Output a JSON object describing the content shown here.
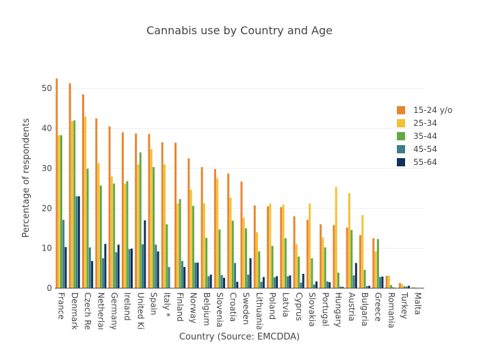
{
  "chart_data": {
    "type": "bar",
    "title": "Cannabis use by Country and Age",
    "xlabel": "Country (Source: EMCDDA)",
    "ylabel": "Percentage of respondents",
    "ylim": [
      0,
      55
    ],
    "yticks": [
      0,
      10,
      20,
      30,
      40,
      50
    ],
    "grid": true,
    "legend_position": "right",
    "categories": [
      "France",
      "Denmark",
      "Czech Republic",
      "Netherlands",
      "Germany",
      "Ireland",
      "United Kingdom",
      "Spain",
      "Italy *",
      "Finland",
      "Norway",
      "Belgium",
      "Slovenia",
      "Croatia",
      "Sweden",
      "Lithuania",
      "Poland",
      "Latvia",
      "Cyprus",
      "Slovakia",
      "Portugal",
      "Hungary",
      "Austria",
      "Bulgaria",
      "Greece",
      "Romania",
      "Turkey",
      "Malta"
    ],
    "series": [
      {
        "name": "15-24 y/o",
        "color": "#e6862f",
        "values": [
          52.5,
          51.3,
          48.5,
          42.5,
          40.5,
          39.0,
          38.7,
          38.6,
          36.5,
          36.4,
          32.5,
          30.3,
          29.8,
          28.7,
          26.7,
          20.7,
          20.5,
          20.3,
          18.0,
          17.1,
          16.0,
          15.8,
          15.2,
          13.3,
          12.5,
          3.1,
          1.3,
          0.2
        ]
      },
      {
        "name": "25-34",
        "color": "#f2c234",
        "values": [
          38.3,
          41.8,
          43.0,
          31.3,
          28.0,
          26.2,
          31.0,
          34.8,
          31.0,
          21.2,
          24.7,
          21.3,
          27.5,
          22.7,
          17.7,
          14.0,
          21.2,
          20.9,
          11.0,
          21.2,
          12.7,
          25.3,
          23.8,
          18.3,
          9.2,
          3.1,
          1.0,
          0.2
        ]
      },
      {
        "name": "35-44",
        "color": "#62a844",
        "values": [
          38.3,
          42.0,
          29.9,
          25.7,
          26.2,
          26.8,
          34.0,
          30.3,
          16.0,
          22.3,
          20.6,
          12.6,
          14.7,
          16.9,
          15.0,
          9.2,
          10.6,
          12.5,
          7.9,
          7.5,
          10.2,
          3.9,
          14.6,
          4.6,
          12.3,
          0.8,
          0.5,
          0.1
        ]
      },
      {
        "name": "45-54",
        "color": "#3e7c8c",
        "values": [
          17.1,
          23.0,
          10.2,
          7.5,
          9.0,
          9.8,
          11.0,
          10.9,
          5.3,
          6.8,
          6.4,
          3.0,
          3.3,
          6.3,
          3.4,
          1.6,
          2.7,
          3.0,
          1.4,
          0.9,
          1.7,
          0.4,
          3.2,
          0.5,
          2.8,
          0.2,
          0.4,
          0.1
        ]
      },
      {
        "name": "55-64",
        "color": "#10325a",
        "values": [
          10.3,
          23.0,
          6.8,
          11.1,
          10.9,
          9.9,
          17.0,
          9.2,
          0.0,
          5.3,
          6.4,
          3.4,
          2.6,
          1.6,
          7.5,
          2.8,
          3.0,
          3.2,
          3.6,
          1.7,
          1.5,
          0.3,
          6.3,
          0.6,
          2.9,
          0.1,
          0.6,
          0.0
        ]
      }
    ]
  }
}
